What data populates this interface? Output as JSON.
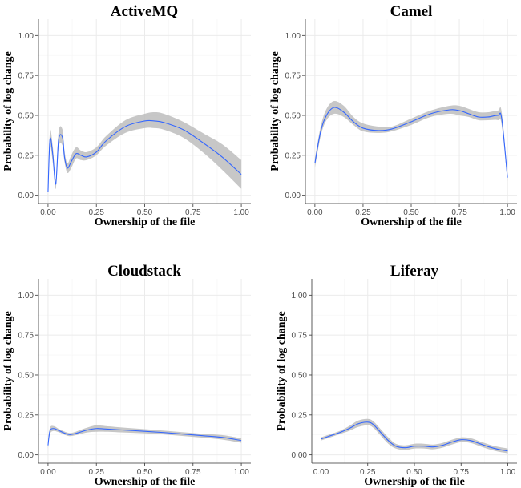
{
  "chart_data": [
    {
      "type": "line",
      "title": "ActiveMQ",
      "xlabel": "Ownership of the file",
      "ylabel": "Probability of log change",
      "xlim": [
        0,
        1
      ],
      "ylim": [
        0,
        1.05
      ],
      "xticks": [
        "0.00",
        "0.25",
        "0.50",
        "0.75",
        "1.00"
      ],
      "yticks": [
        "0.00",
        "0.25",
        "0.50",
        "0.75",
        "1.00"
      ],
      "grid": true,
      "series": [
        {
          "style": "smooth fit with confidence band",
          "x": [
            0.0,
            0.01,
            0.025,
            0.04,
            0.055,
            0.075,
            0.085,
            0.1,
            0.12,
            0.145,
            0.17,
            0.2,
            0.25,
            0.3,
            0.4,
            0.5,
            0.55,
            0.6,
            0.7,
            0.8,
            0.9,
            1.0
          ],
          "y": [
            0.02,
            0.35,
            0.25,
            0.07,
            0.35,
            0.36,
            0.24,
            0.17,
            0.21,
            0.26,
            0.25,
            0.24,
            0.27,
            0.34,
            0.43,
            0.465,
            0.465,
            0.455,
            0.41,
            0.33,
            0.24,
            0.13
          ],
          "lower": [
            0.0,
            0.3,
            0.2,
            0.04,
            0.3,
            0.31,
            0.21,
            0.14,
            0.17,
            0.23,
            0.22,
            0.22,
            0.25,
            0.31,
            0.39,
            0.42,
            0.42,
            0.41,
            0.36,
            0.27,
            0.16,
            0.04
          ],
          "upper": [
            0.04,
            0.4,
            0.3,
            0.1,
            0.4,
            0.41,
            0.28,
            0.2,
            0.25,
            0.3,
            0.28,
            0.27,
            0.3,
            0.37,
            0.47,
            0.51,
            0.52,
            0.51,
            0.46,
            0.39,
            0.32,
            0.22
          ]
        }
      ]
    },
    {
      "type": "line",
      "title": "Camel",
      "xlabel": "Ownership of the file",
      "ylabel": "Probability of log change",
      "xlim": [
        0,
        1
      ],
      "ylim": [
        0,
        1.05
      ],
      "xticks": [
        "0.00",
        "0.25",
        "0.50",
        "0.75",
        "1.00"
      ],
      "yticks": [
        "0.00",
        "0.25",
        "0.50",
        "0.75",
        "1.00"
      ],
      "grid": true,
      "series": [
        {
          "style": "smooth fit with confidence band",
          "x": [
            0.0,
            0.03,
            0.06,
            0.1,
            0.15,
            0.2,
            0.25,
            0.33,
            0.4,
            0.5,
            0.6,
            0.7,
            0.75,
            0.8,
            0.85,
            0.9,
            0.95,
            0.97,
            1.0
          ],
          "y": [
            0.2,
            0.4,
            0.5,
            0.55,
            0.52,
            0.46,
            0.42,
            0.405,
            0.415,
            0.46,
            0.51,
            0.535,
            0.53,
            0.51,
            0.49,
            0.49,
            0.5,
            0.48,
            0.11
          ],
          "lower": [
            0.17,
            0.37,
            0.47,
            0.51,
            0.49,
            0.44,
            0.4,
            0.39,
            0.4,
            0.44,
            0.49,
            0.51,
            0.5,
            0.49,
            0.47,
            0.47,
            0.47,
            0.44,
            0.09
          ],
          "upper": [
            0.23,
            0.43,
            0.54,
            0.59,
            0.56,
            0.49,
            0.45,
            0.43,
            0.43,
            0.48,
            0.53,
            0.56,
            0.56,
            0.54,
            0.52,
            0.52,
            0.53,
            0.52,
            0.13
          ]
        }
      ]
    },
    {
      "type": "line",
      "title": "Cloudstack",
      "xlabel": "Ownership of the file",
      "ylabel": "Probability of log change",
      "xlim": [
        0,
        1
      ],
      "ylim": [
        0,
        1.05
      ],
      "xticks": [
        "0.00",
        "0.25",
        "0.50",
        "0.75",
        "1.00"
      ],
      "yticks": [
        "0.00",
        "0.25",
        "0.50",
        "0.75",
        "1.00"
      ],
      "grid": true,
      "series": [
        {
          "style": "smooth fit with confidence band",
          "x": [
            0.0,
            0.01,
            0.03,
            0.06,
            0.1,
            0.13,
            0.2,
            0.25,
            0.3,
            0.4,
            0.5,
            0.6,
            0.7,
            0.8,
            0.9,
            1.0
          ],
          "y": [
            0.06,
            0.15,
            0.165,
            0.15,
            0.13,
            0.13,
            0.155,
            0.165,
            0.162,
            0.155,
            0.148,
            0.14,
            0.13,
            0.12,
            0.11,
            0.09
          ],
          "lower": [
            0.04,
            0.13,
            0.15,
            0.14,
            0.12,
            0.12,
            0.14,
            0.145,
            0.145,
            0.14,
            0.135,
            0.128,
            0.118,
            0.108,
            0.096,
            0.076
          ],
          "upper": [
            0.08,
            0.17,
            0.18,
            0.16,
            0.14,
            0.14,
            0.17,
            0.185,
            0.18,
            0.17,
            0.161,
            0.152,
            0.142,
            0.132,
            0.124,
            0.104
          ]
        }
      ]
    },
    {
      "type": "line",
      "title": "Liferay",
      "xlabel": "Ownership of the file",
      "ylabel": "Probability of log change",
      "xlim": [
        0,
        1
      ],
      "ylim": [
        0,
        1.05
      ],
      "xticks": [
        "0.00",
        "0.25",
        "0.50",
        "0.75",
        "1.00"
      ],
      "yticks": [
        "0.00",
        "0.25",
        "0.50",
        "0.75",
        "1.00"
      ],
      "grid": true,
      "series": [
        {
          "style": "smooth fit with confidence band",
          "x": [
            0.0,
            0.05,
            0.1,
            0.15,
            0.2,
            0.25,
            0.28,
            0.32,
            0.36,
            0.4,
            0.45,
            0.5,
            0.55,
            0.6,
            0.65,
            0.7,
            0.75,
            0.8,
            0.85,
            0.9,
            0.95,
            1.0
          ],
          "y": [
            0.1,
            0.12,
            0.14,
            0.165,
            0.195,
            0.205,
            0.19,
            0.14,
            0.09,
            0.055,
            0.045,
            0.055,
            0.055,
            0.05,
            0.06,
            0.08,
            0.095,
            0.09,
            0.07,
            0.05,
            0.035,
            0.025
          ],
          "lower": [
            0.09,
            0.11,
            0.13,
            0.15,
            0.175,
            0.185,
            0.17,
            0.12,
            0.07,
            0.04,
            0.03,
            0.04,
            0.04,
            0.035,
            0.045,
            0.065,
            0.08,
            0.075,
            0.055,
            0.035,
            0.02,
            0.01
          ],
          "upper": [
            0.11,
            0.13,
            0.15,
            0.18,
            0.215,
            0.225,
            0.21,
            0.16,
            0.11,
            0.07,
            0.06,
            0.07,
            0.07,
            0.065,
            0.075,
            0.095,
            0.11,
            0.105,
            0.085,
            0.065,
            0.05,
            0.04
          ]
        }
      ]
    }
  ]
}
